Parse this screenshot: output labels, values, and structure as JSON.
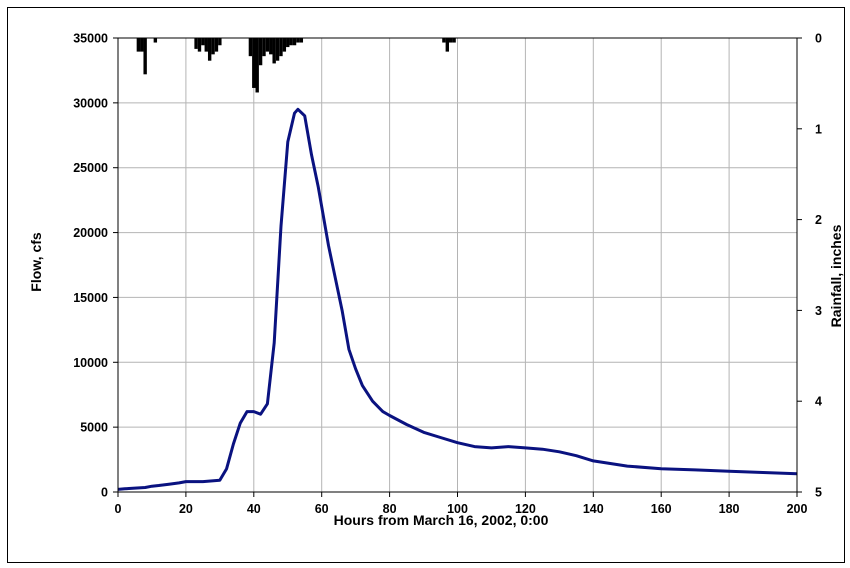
{
  "chart_data": {
    "type": "line",
    "xlabel": "Hours from March 16, 2002, 0:00",
    "ylabel": "Flow, cfs",
    "y2label": "Rainfall, inches",
    "xlim": [
      0,
      200
    ],
    "ylim": [
      0,
      35000
    ],
    "y2lim": [
      0,
      5
    ],
    "y2_inverted": true,
    "xticks": [
      0,
      20,
      40,
      60,
      80,
      100,
      120,
      140,
      160,
      180,
      200
    ],
    "yticks": [
      0,
      5000,
      10000,
      15000,
      20000,
      25000,
      30000,
      35000
    ],
    "y2ticks": [
      0,
      1,
      2,
      3,
      4,
      5
    ],
    "grid": true,
    "colors": {
      "flow": "#0a1280",
      "rainfall": "#000000",
      "grid": "#b4b4b4"
    },
    "series": [
      {
        "type": "line",
        "axis": "left",
        "x": [
          0,
          2,
          5,
          8,
          10,
          12,
          15,
          18,
          20,
          25,
          30,
          32,
          34,
          36,
          38,
          40,
          42,
          44,
          46,
          48,
          50,
          52,
          53,
          55,
          57,
          59,
          60,
          62,
          64,
          66,
          68,
          70,
          72,
          75,
          78,
          80,
          85,
          90,
          95,
          100,
          105,
          110,
          115,
          120,
          125,
          130,
          135,
          140,
          145,
          150,
          160,
          170,
          180,
          190,
          200
        ],
        "values": [
          200,
          250,
          300,
          350,
          450,
          500,
          600,
          700,
          800,
          800,
          900,
          1800,
          3700,
          5300,
          6200,
          6200,
          6000,
          6800,
          11500,
          20500,
          27000,
          29200,
          29500,
          29000,
          26000,
          23500,
          22000,
          19000,
          16500,
          14000,
          11000,
          9500,
          8200,
          7000,
          6200,
          5900,
          5200,
          4600,
          4200,
          3800,
          3500,
          3400,
          3500,
          3400,
          3300,
          3100,
          2800,
          2400,
          2200,
          2000,
          1800,
          1700,
          1600,
          1500,
          1400
        ]
      },
      {
        "type": "bar",
        "axis": "right",
        "x": [
          6,
          7,
          8,
          11,
          23,
          24,
          25,
          26,
          27,
          28,
          29,
          30,
          39,
          40,
          41,
          42,
          43,
          44,
          45,
          46,
          47,
          48,
          49,
          50,
          51,
          52,
          53,
          54,
          96,
          97,
          98,
          99
        ],
        "values": [
          0.15,
          0.15,
          0.4,
          0.05,
          0.12,
          0.15,
          0.08,
          0.15,
          0.25,
          0.18,
          0.15,
          0.08,
          0.2,
          0.55,
          0.6,
          0.3,
          0.2,
          0.15,
          0.18,
          0.28,
          0.25,
          0.2,
          0.15,
          0.1,
          0.08,
          0.08,
          0.05,
          0.05,
          0.05,
          0.15,
          0.05,
          0.05
        ]
      }
    ]
  }
}
